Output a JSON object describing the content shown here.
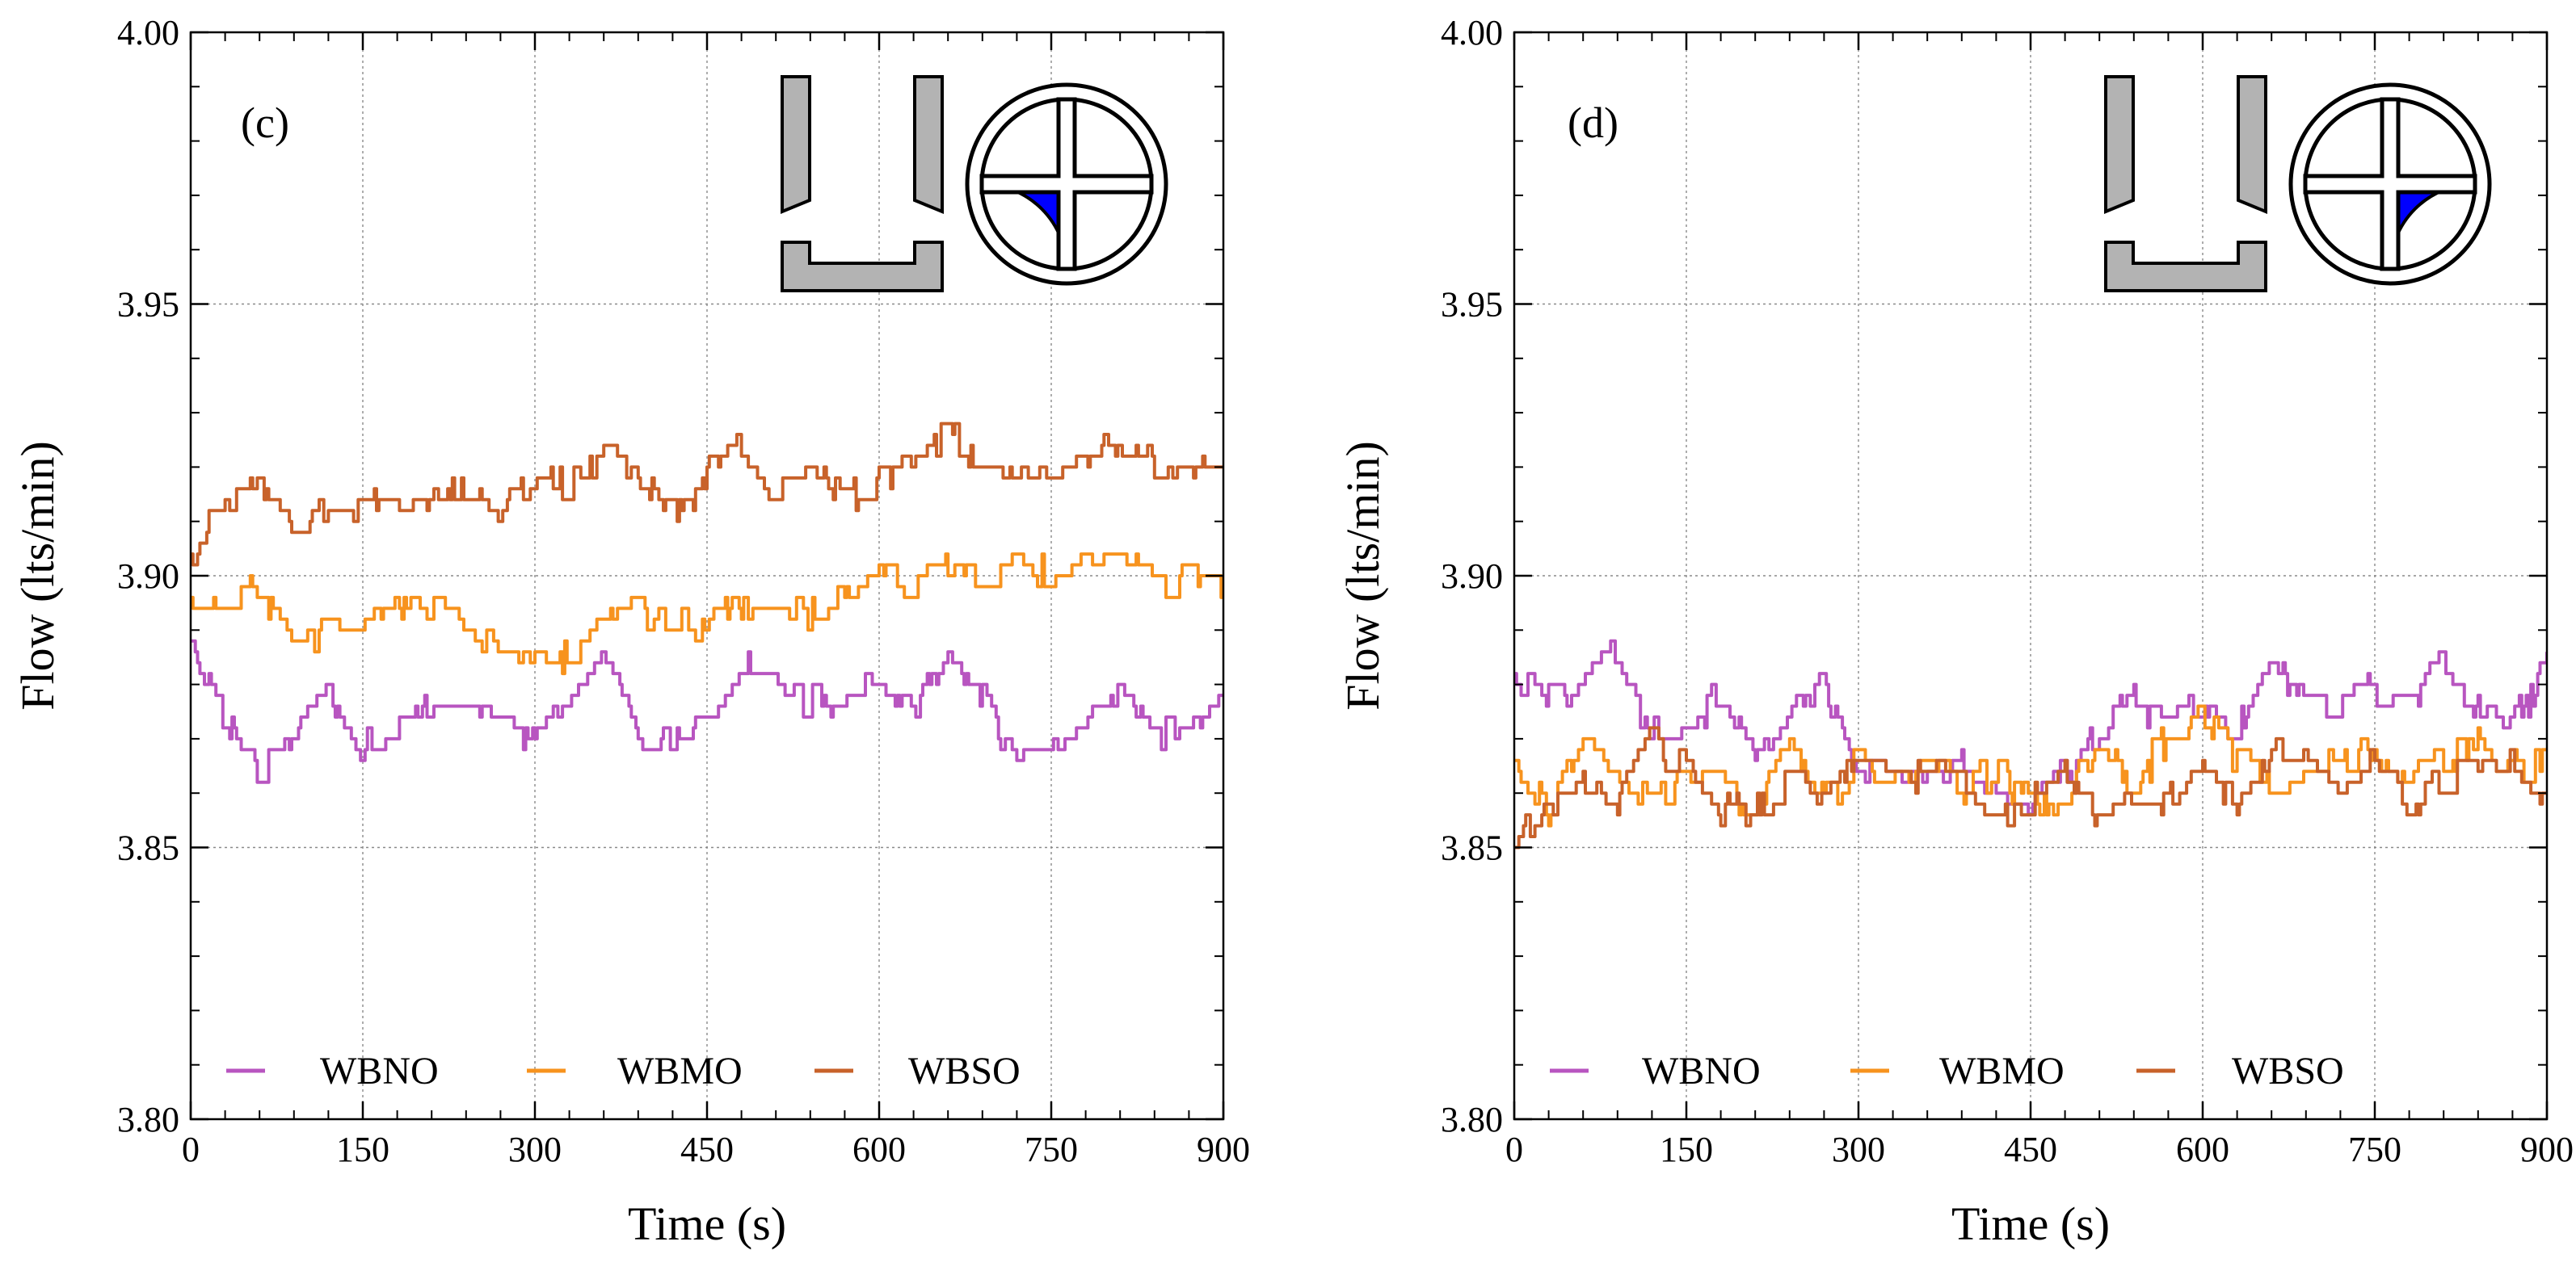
{
  "chart_data": [
    {
      "type": "line",
      "panel_label": "(c)",
      "xlabel": "Time (s)",
      "ylabel": "Flow (lts/min)",
      "xlim": [
        0,
        900
      ],
      "ylim": [
        3.8,
        4.0
      ],
      "xticks": [
        0,
        150,
        300,
        450,
        600,
        750,
        900
      ],
      "yticks": [
        3.8,
        3.85,
        3.9,
        3.95,
        4.0
      ],
      "xtick_labels": [
        "0",
        "150",
        "300",
        "450",
        "600",
        "750",
        "900"
      ],
      "ytick_labels": [
        "3.80",
        "3.85",
        "3.90",
        "3.95",
        "4.00"
      ],
      "grid": true,
      "legend_position": "bottom",
      "inset": {
        "depicts": "pipe cross-section",
        "highlighted_quadrant": "bottom-left",
        "fill_color": "#0000ff"
      },
      "series": [
        {
          "name": "WBNO",
          "color": "#b855c0",
          "x": [
            0,
            30,
            60,
            90,
            120,
            150,
            180,
            210,
            240,
            270,
            300,
            330,
            360,
            390,
            420,
            450,
            480,
            510,
            540,
            570,
            600,
            630,
            660,
            690,
            720,
            750,
            780,
            810,
            840,
            870,
            900
          ],
          "values": [
            3.888,
            3.875,
            3.862,
            3.872,
            3.88,
            3.868,
            3.872,
            3.876,
            3.878,
            3.874,
            3.868,
            3.876,
            3.885,
            3.872,
            3.87,
            3.874,
            3.884,
            3.882,
            3.876,
            3.878,
            3.88,
            3.874,
            3.886,
            3.878,
            3.866,
            3.866,
            3.872,
            3.88,
            3.87,
            3.872,
            3.879
          ]
        },
        {
          "name": "WBMO",
          "color": "#f7931e",
          "x": [
            0,
            30,
            60,
            90,
            120,
            150,
            180,
            210,
            240,
            270,
            300,
            330,
            360,
            390,
            420,
            450,
            480,
            510,
            540,
            570,
            600,
            630,
            660,
            690,
            720,
            750,
            780,
            810,
            840,
            870,
            900
          ],
          "values": [
            3.895,
            3.895,
            3.897,
            3.886,
            3.89,
            3.892,
            3.895,
            3.894,
            3.89,
            3.886,
            3.883,
            3.885,
            3.89,
            3.894,
            3.892,
            3.89,
            3.894,
            3.896,
            3.892,
            3.896,
            3.904,
            3.898,
            3.902,
            3.9,
            3.902,
            3.9,
            3.903,
            3.906,
            3.898,
            3.9,
            3.899
          ]
        },
        {
          "name": "WBSO",
          "color": "#c8622a",
          "x": [
            0,
            30,
            60,
            90,
            120,
            150,
            180,
            210,
            240,
            270,
            300,
            330,
            360,
            390,
            420,
            450,
            480,
            510,
            540,
            570,
            600,
            630,
            660,
            690,
            720,
            750,
            780,
            810,
            840,
            870,
            900
          ],
          "values": [
            3.905,
            3.912,
            3.916,
            3.91,
            3.912,
            3.912,
            3.915,
            3.916,
            3.914,
            3.912,
            3.916,
            3.917,
            3.922,
            3.92,
            3.912,
            3.918,
            3.924,
            3.916,
            3.92,
            3.914,
            3.918,
            3.92,
            3.926,
            3.92,
            3.92,
            3.92,
            3.922,
            3.924,
            3.92,
            3.92,
            3.918
          ]
        }
      ]
    },
    {
      "type": "line",
      "panel_label": "(d)",
      "xlabel": "Time (s)",
      "ylabel": "Flow (lts/min)",
      "xlim": [
        0,
        900
      ],
      "ylim": [
        3.8,
        4.0
      ],
      "xticks": [
        0,
        150,
        300,
        450,
        600,
        750,
        900
      ],
      "yticks": [
        3.8,
        3.85,
        3.9,
        3.95,
        4.0
      ],
      "xtick_labels": [
        "0",
        "150",
        "300",
        "450",
        "600",
        "750",
        "900"
      ],
      "ytick_labels": [
        "3.80",
        "3.85",
        "3.90",
        "3.95",
        "4.00"
      ],
      "grid": true,
      "legend_position": "bottom",
      "inset": {
        "depicts": "pipe cross-section",
        "highlighted_quadrant": "bottom-right",
        "fill_color": "#0000ff"
      },
      "series": [
        {
          "name": "WBNO",
          "color": "#b855c0",
          "x": [
            0,
            30,
            60,
            90,
            120,
            150,
            180,
            210,
            240,
            270,
            300,
            330,
            360,
            390,
            420,
            450,
            480,
            510,
            540,
            570,
            600,
            630,
            660,
            690,
            720,
            750,
            780,
            810,
            840,
            870,
            900
          ],
          "values": [
            3.882,
            3.878,
            3.878,
            3.886,
            3.87,
            3.872,
            3.878,
            3.866,
            3.876,
            3.88,
            3.862,
            3.864,
            3.862,
            3.866,
            3.86,
            3.858,
            3.864,
            3.87,
            3.878,
            3.872,
            3.876,
            3.872,
            3.884,
            3.876,
            3.874,
            3.88,
            3.876,
            3.884,
            3.876,
            3.872,
            3.883
          ]
        },
        {
          "name": "WBMO",
          "color": "#f7931e",
          "x": [
            0,
            30,
            60,
            90,
            120,
            150,
            180,
            210,
            240,
            270,
            300,
            330,
            360,
            390,
            420,
            450,
            480,
            510,
            540,
            570,
            600,
            630,
            660,
            690,
            720,
            750,
            780,
            810,
            840,
            870,
            900
          ],
          "values": [
            3.866,
            3.856,
            3.868,
            3.866,
            3.858,
            3.864,
            3.862,
            3.856,
            3.868,
            3.858,
            3.866,
            3.862,
            3.866,
            3.86,
            3.864,
            3.858,
            3.86,
            3.868,
            3.862,
            3.87,
            3.874,
            3.866,
            3.862,
            3.864,
            3.866,
            3.868,
            3.862,
            3.866,
            3.87,
            3.864,
            3.866
          ]
        },
        {
          "name": "WBSO",
          "color": "#c8622a",
          "x": [
            0,
            30,
            60,
            90,
            120,
            150,
            180,
            210,
            240,
            270,
            300,
            330,
            360,
            390,
            420,
            450,
            480,
            510,
            540,
            570,
            600,
            630,
            660,
            690,
            720,
            750,
            780,
            810,
            840,
            870,
            900
          ],
          "values": [
            3.85,
            3.858,
            3.862,
            3.858,
            3.87,
            3.864,
            3.856,
            3.858,
            3.862,
            3.858,
            3.866,
            3.864,
            3.862,
            3.864,
            3.856,
            3.858,
            3.864,
            3.856,
            3.858,
            3.858,
            3.864,
            3.858,
            3.866,
            3.87,
            3.862,
            3.866,
            3.858,
            3.862,
            3.864,
            3.866,
            3.86
          ]
        }
      ]
    }
  ]
}
